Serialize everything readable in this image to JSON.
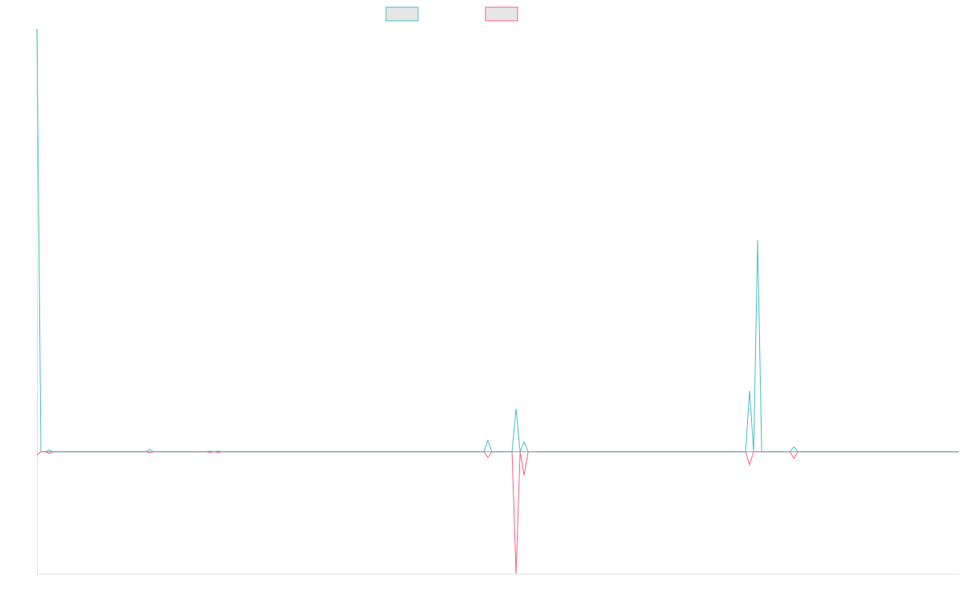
{
  "chart_data": {
    "type": "line",
    "title": "",
    "xlabel": "",
    "ylabel": "",
    "grid": false,
    "legend": "top-center",
    "ylim": [
      -15,
      52
    ],
    "xlim": [
      0,
      229
    ],
    "baseline": 0,
    "series": [
      {
        "color": "#4bc0c0",
        "fill": "#e6e6e6",
        "points": [
          [
            0,
            52
          ],
          [
            1,
            0
          ],
          [
            2,
            0
          ],
          [
            3,
            0.2
          ],
          [
            4,
            0
          ],
          [
            27,
            0
          ],
          [
            28,
            0.3
          ],
          [
            29,
            0
          ],
          [
            42,
            0
          ],
          [
            43,
            0.1
          ],
          [
            44,
            0
          ],
          [
            45,
            0.1
          ],
          [
            46,
            0
          ],
          [
            111,
            0
          ],
          [
            112,
            1.4
          ],
          [
            113,
            0
          ],
          [
            118,
            0
          ],
          [
            119,
            5.3
          ],
          [
            120,
            0
          ],
          [
            121,
            1.2
          ],
          [
            122,
            0
          ],
          [
            176,
            0
          ],
          [
            177,
            7.5
          ],
          [
            178,
            0
          ],
          [
            179,
            26
          ],
          [
            180,
            0
          ],
          [
            187,
            0
          ],
          [
            188,
            0.6
          ],
          [
            189,
            0
          ],
          [
            229,
            0
          ]
        ]
      },
      {
        "color": "#ff6384",
        "fill": "#e6e6e6",
        "points": [
          [
            0,
            -0.4
          ],
          [
            1,
            0
          ],
          [
            2,
            0
          ],
          [
            3,
            -0.2
          ],
          [
            4,
            0
          ],
          [
            27,
            0
          ],
          [
            28,
            -0.1
          ],
          [
            29,
            0
          ],
          [
            42,
            0
          ],
          [
            43,
            -0.1
          ],
          [
            44,
            0
          ],
          [
            45,
            -0.1
          ],
          [
            46,
            0
          ],
          [
            111,
            0
          ],
          [
            112,
            -0.7
          ],
          [
            113,
            0
          ],
          [
            118,
            0
          ],
          [
            119,
            -15
          ],
          [
            120,
            0
          ],
          [
            121,
            -2.9
          ],
          [
            122,
            0
          ],
          [
            176,
            0
          ],
          [
            177,
            -1.6
          ],
          [
            178,
            0
          ],
          [
            179,
            0
          ],
          [
            180,
            0
          ],
          [
            187,
            0
          ],
          [
            188,
            -0.8
          ],
          [
            189,
            0
          ],
          [
            229,
            0
          ]
        ]
      }
    ]
  }
}
